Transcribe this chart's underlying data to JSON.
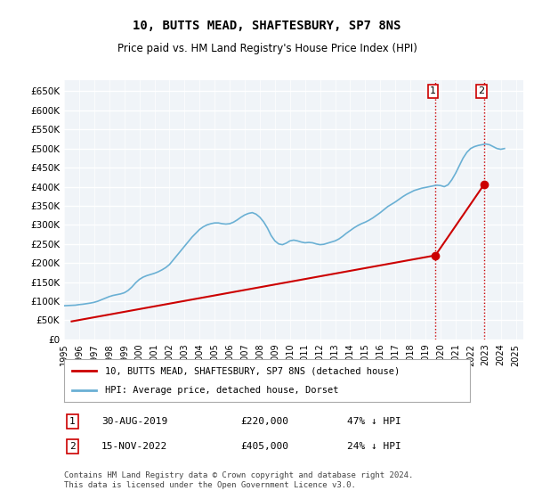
{
  "title": "10, BUTTS MEAD, SHAFTESBURY, SP7 8NS",
  "subtitle": "Price paid vs. HM Land Registry's House Price Index (HPI)",
  "xlabel": "",
  "ylabel": "",
  "ylim": [
    0,
    680000
  ],
  "yticks": [
    0,
    50000,
    100000,
    150000,
    200000,
    250000,
    300000,
    350000,
    400000,
    450000,
    500000,
    550000,
    600000,
    650000
  ],
  "ytick_labels": [
    "£0",
    "£50K",
    "£100K",
    "£150K",
    "£200K",
    "£250K",
    "£300K",
    "£350K",
    "£400K",
    "£450K",
    "£500K",
    "£550K",
    "£600K",
    "£650K"
  ],
  "hpi_color": "#6ab0d4",
  "price_color": "#cc0000",
  "marker_color_1": "#cc0000",
  "marker_color_2": "#cc0000",
  "sale1_date_num": 2019.66,
  "sale1_price": 220000,
  "sale2_date_num": 2022.88,
  "sale2_price": 405000,
  "vline_color": "#cc0000",
  "vline_style": ":",
  "background_plot": "#f0f4f8",
  "background_fig": "#ffffff",
  "grid_color": "#ffffff",
  "legend_box_color": "#ffffff",
  "footer_text": "Contains HM Land Registry data © Crown copyright and database right 2024.\nThis data is licensed under the Open Government Licence v3.0.",
  "legend_line1": "10, BUTTS MEAD, SHAFTESBURY, SP7 8NS (detached house)",
  "legend_line2": "HPI: Average price, detached house, Dorset",
  "table_row1": [
    "1",
    "30-AUG-2019",
    "£220,000",
    "47% ↓ HPI"
  ],
  "table_row2": [
    "2",
    "15-NOV-2022",
    "£405,000",
    "24% ↓ HPI"
  ],
  "hpi_data": {
    "years": [
      1995.0,
      1995.25,
      1995.5,
      1995.75,
      1996.0,
      1996.25,
      1996.5,
      1996.75,
      1997.0,
      1997.25,
      1997.5,
      1997.75,
      1998.0,
      1998.25,
      1998.5,
      1998.75,
      1999.0,
      1999.25,
      1999.5,
      1999.75,
      2000.0,
      2000.25,
      2000.5,
      2000.75,
      2001.0,
      2001.25,
      2001.5,
      2001.75,
      2002.0,
      2002.25,
      2002.5,
      2002.75,
      2003.0,
      2003.25,
      2003.5,
      2003.75,
      2004.0,
      2004.25,
      2004.5,
      2004.75,
      2005.0,
      2005.25,
      2005.5,
      2005.75,
      2006.0,
      2006.25,
      2006.5,
      2006.75,
      2007.0,
      2007.25,
      2007.5,
      2007.75,
      2008.0,
      2008.25,
      2008.5,
      2008.75,
      2009.0,
      2009.25,
      2009.5,
      2009.75,
      2010.0,
      2010.25,
      2010.5,
      2010.75,
      2011.0,
      2011.25,
      2011.5,
      2011.75,
      2012.0,
      2012.25,
      2012.5,
      2012.75,
      2013.0,
      2013.25,
      2013.5,
      2013.75,
      2014.0,
      2014.25,
      2014.5,
      2014.75,
      2015.0,
      2015.25,
      2015.5,
      2015.75,
      2016.0,
      2016.25,
      2016.5,
      2016.75,
      2017.0,
      2017.25,
      2017.5,
      2017.75,
      2018.0,
      2018.25,
      2018.5,
      2018.75,
      2019.0,
      2019.25,
      2019.5,
      2019.75,
      2020.0,
      2020.25,
      2020.5,
      2020.75,
      2021.0,
      2021.25,
      2021.5,
      2021.75,
      2022.0,
      2022.25,
      2022.5,
      2022.75,
      2023.0,
      2023.25,
      2023.5,
      2023.75,
      2024.0,
      2024.25
    ],
    "values": [
      88000,
      88500,
      89000,
      89500,
      91000,
      92000,
      93500,
      95000,
      97000,
      100000,
      104000,
      108000,
      112000,
      115000,
      117000,
      119000,
      122000,
      128000,
      137000,
      148000,
      157000,
      163000,
      167000,
      170000,
      173000,
      177000,
      182000,
      188000,
      196000,
      208000,
      220000,
      232000,
      244000,
      256000,
      268000,
      278000,
      288000,
      295000,
      300000,
      303000,
      305000,
      305000,
      303000,
      302000,
      303000,
      307000,
      313000,
      320000,
      326000,
      330000,
      332000,
      328000,
      320000,
      308000,
      292000,
      272000,
      258000,
      250000,
      248000,
      252000,
      258000,
      260000,
      258000,
      255000,
      253000,
      254000,
      253000,
      250000,
      248000,
      249000,
      252000,
      255000,
      258000,
      263000,
      270000,
      278000,
      285000,
      292000,
      298000,
      303000,
      307000,
      312000,
      318000,
      325000,
      332000,
      340000,
      348000,
      354000,
      360000,
      367000,
      374000,
      380000,
      385000,
      390000,
      393000,
      396000,
      398000,
      400000,
      402000,
      404000,
      403000,
      400000,
      405000,
      418000,
      435000,
      455000,
      475000,
      490000,
      500000,
      505000,
      508000,
      510000,
      512000,
      510000,
      505000,
      500000,
      498000,
      500000
    ],
    "price_paid_years": [
      1995.5,
      2019.66,
      2022.88
    ],
    "price_paid_values": [
      47000,
      220000,
      405000
    ]
  }
}
